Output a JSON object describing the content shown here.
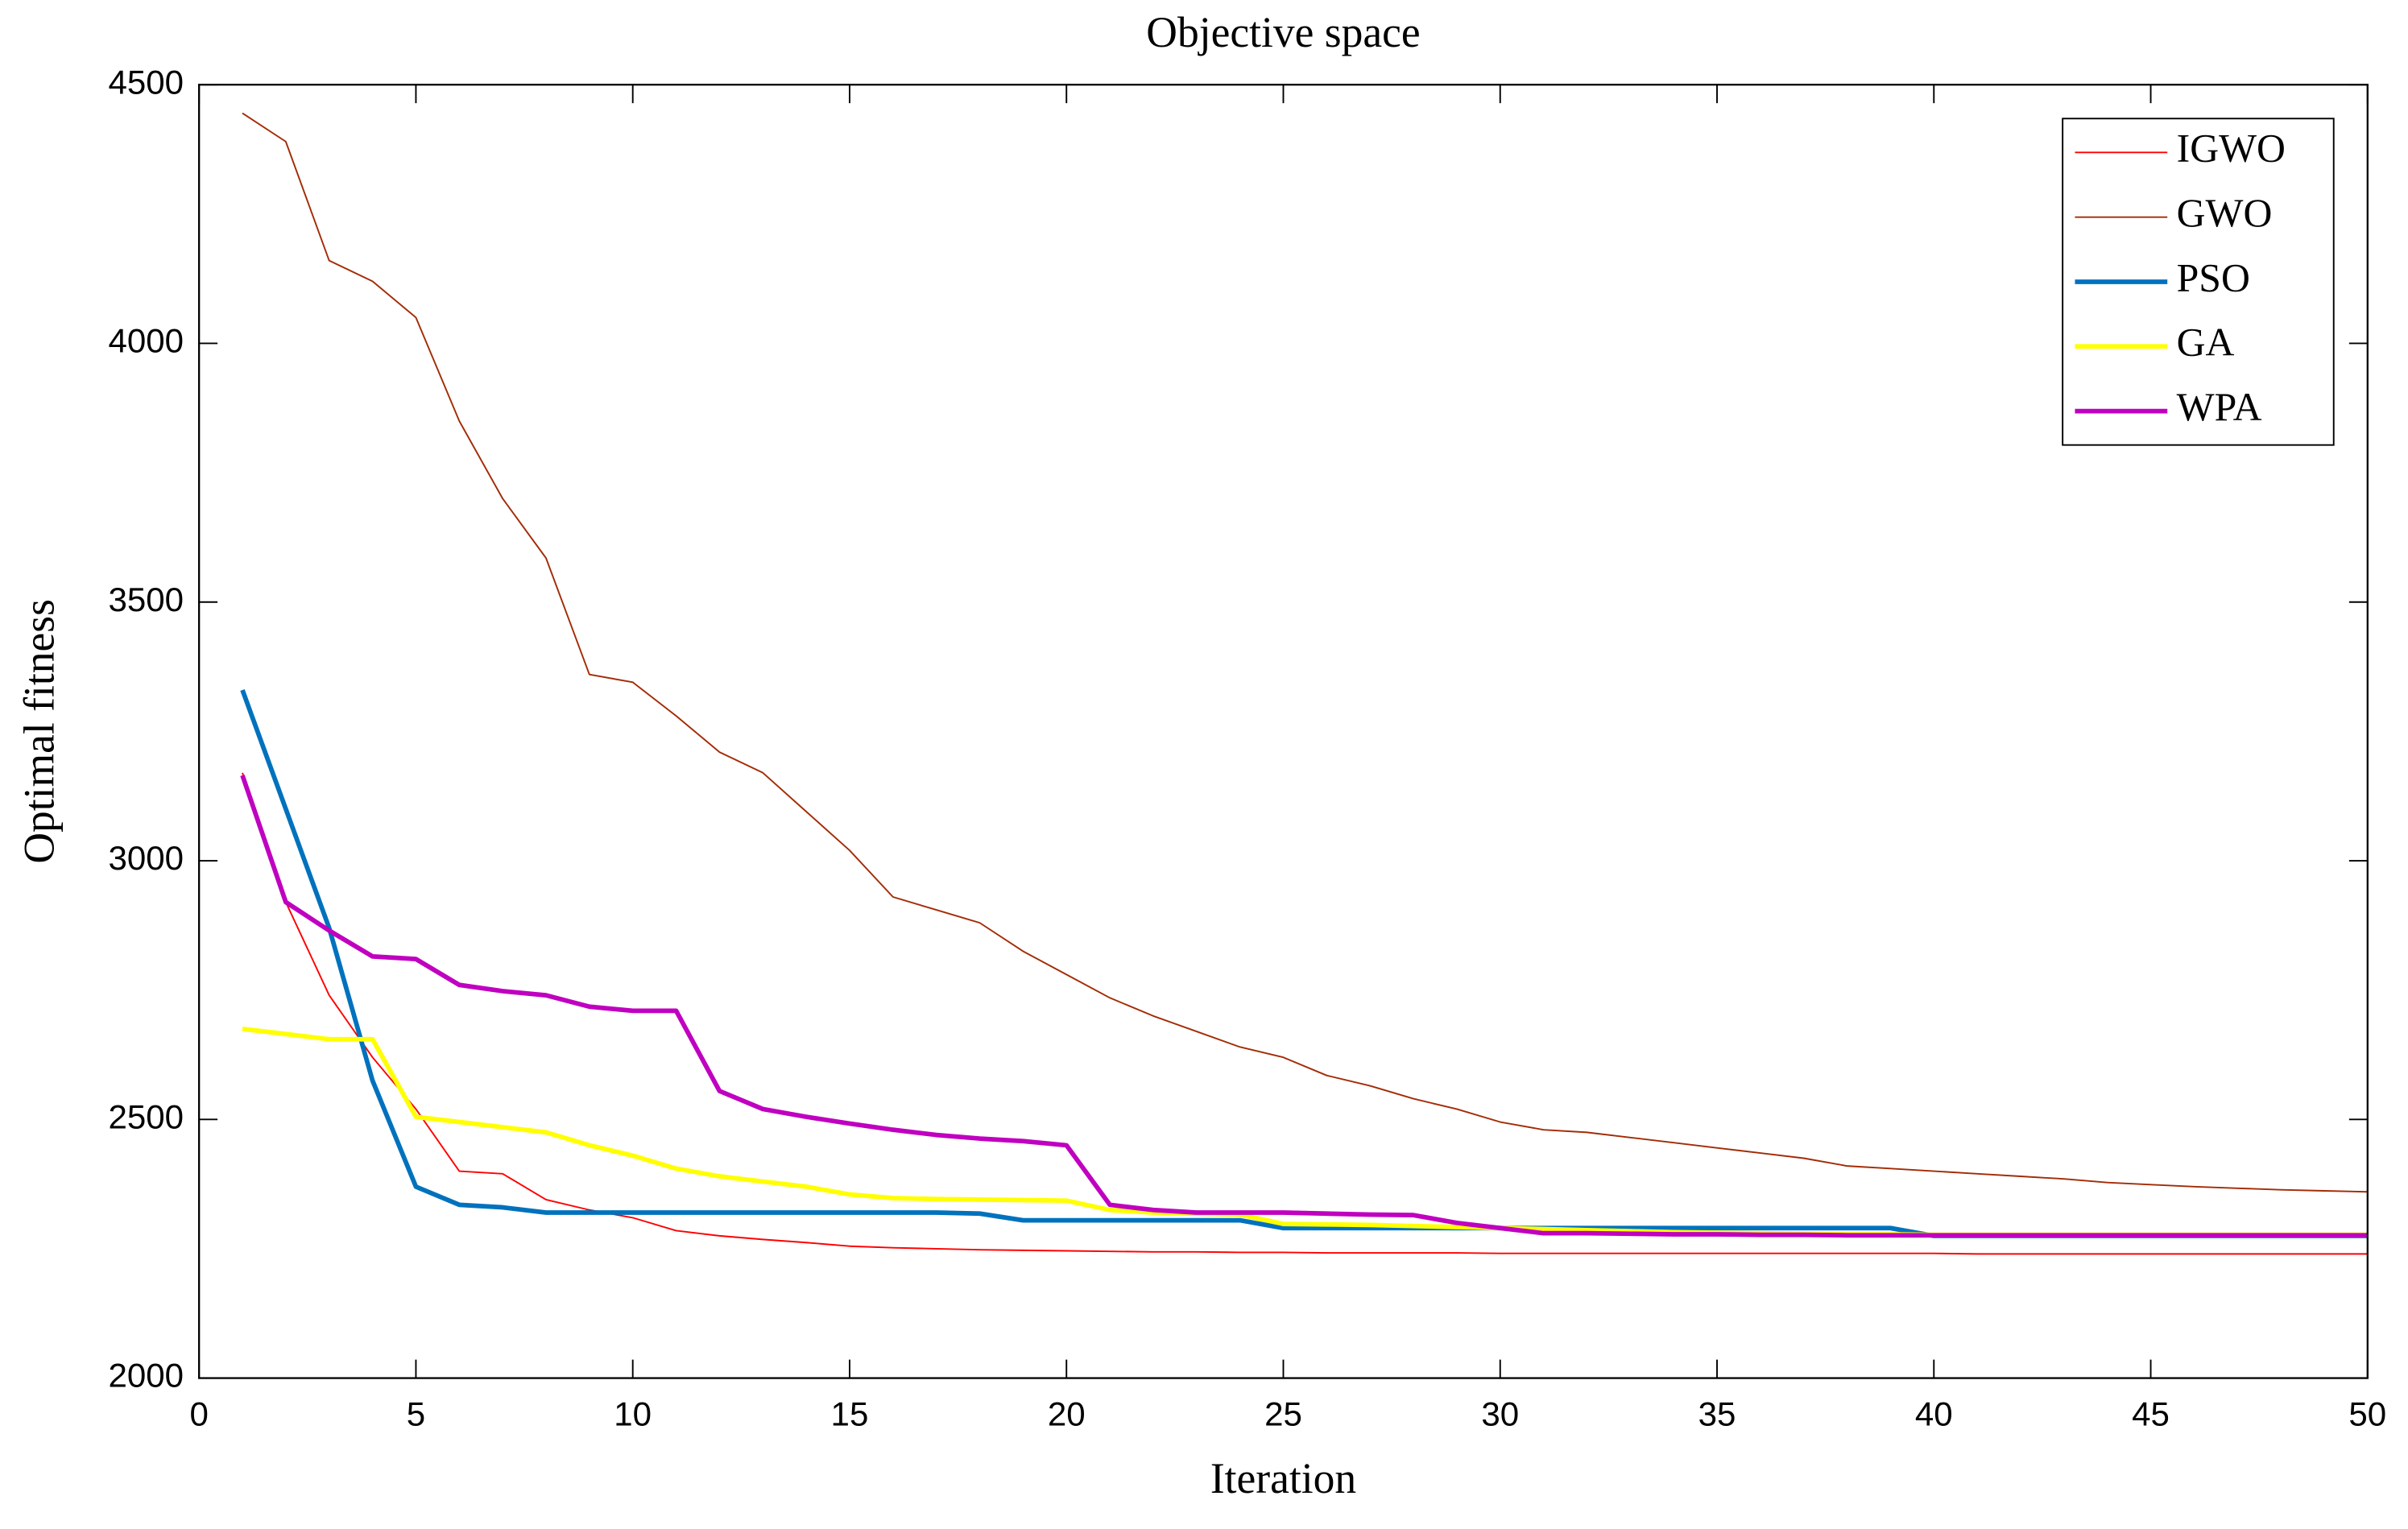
{
  "chart_data": {
    "type": "line",
    "title": "Objective space",
    "xlabel": "Iteration",
    "ylabel": "Optimal fitness",
    "x": [
      1,
      2,
      3,
      4,
      5,
      6,
      7,
      8,
      9,
      10,
      11,
      12,
      13,
      14,
      15,
      16,
      17,
      18,
      19,
      20,
      21,
      22,
      23,
      24,
      25,
      26,
      27,
      28,
      29,
      30,
      31,
      32,
      33,
      34,
      35,
      36,
      37,
      38,
      39,
      40,
      41,
      42,
      43,
      44,
      45,
      46,
      47,
      48,
      49,
      50
    ],
    "xlim": [
      0,
      50
    ],
    "xticks": [
      0,
      5,
      10,
      15,
      20,
      25,
      30,
      35,
      40,
      45,
      50
    ],
    "ylim": [
      2000,
      4500
    ],
    "yticks": [
      2000,
      2500,
      3000,
      3500,
      4000,
      4500
    ],
    "legend": "northeast",
    "series": [
      {
        "name": "IGWO",
        "color": "#ff0000",
        "line_width": 1,
        "values": [
          3170,
          2920,
          2740,
          2620,
          2520,
          2400,
          2395,
          2345,
          2325,
          2310,
          2285,
          2275,
          2268,
          2262,
          2255,
          2252,
          2250,
          2248,
          2247,
          2246,
          2245,
          2244,
          2244,
          2243,
          2243,
          2242,
          2242,
          2242,
          2242,
          2241,
          2241,
          2241,
          2241,
          2241,
          2241,
          2241,
          2241,
          2241,
          2241,
          2241,
          2240,
          2240,
          2240,
          2240,
          2240,
          2240,
          2240,
          2240,
          2240,
          2240
        ]
      },
      {
        "name": "GWO",
        "color": "#a32b05",
        "line_width": 1,
        "values": [
          4445,
          4390,
          4160,
          4120,
          4050,
          3850,
          3700,
          3585,
          3360,
          3345,
          3280,
          3210,
          3170,
          3095,
          3020,
          2930,
          2905,
          2880,
          2825,
          2780,
          2735,
          2700,
          2670,
          2640,
          2620,
          2585,
          2565,
          2540,
          2520,
          2495,
          2480,
          2475,
          2465,
          2455,
          2445,
          2435,
          2425,
          2410,
          2405,
          2400,
          2395,
          2390,
          2385,
          2378,
          2374,
          2370,
          2367,
          2364,
          2362,
          2360
        ]
      },
      {
        "name": "PSO",
        "color": "#0072bd",
        "line_width": 3,
        "values": [
          3330,
          3100,
          2870,
          2575,
          2370,
          2335,
          2330,
          2320,
          2320,
          2320,
          2320,
          2320,
          2320,
          2320,
          2320,
          2320,
          2320,
          2318,
          2305,
          2305,
          2305,
          2305,
          2305,
          2305,
          2290,
          2290,
          2290,
          2290,
          2290,
          2290,
          2290,
          2290,
          2290,
          2290,
          2290,
          2290,
          2290,
          2290,
          2290,
          2275,
          2275,
          2275,
          2275,
          2275,
          2275,
          2275,
          2275,
          2275,
          2275,
          2275
        ]
      },
      {
        "name": "GA",
        "color": "#ffff00",
        "line_width": 3,
        "values": [
          2675,
          2665,
          2655,
          2655,
          2505,
          2495,
          2485,
          2475,
          2450,
          2430,
          2405,
          2390,
          2380,
          2370,
          2355,
          2348,
          2346,
          2345,
          2344,
          2343,
          2325,
          2320,
          2318,
          2316,
          2298,
          2297,
          2296,
          2294,
          2292,
          2290,
          2288,
          2286,
          2284,
          2282,
          2281,
          2280,
          2279,
          2278,
          2278,
          2277,
          2277,
          2277,
          2277,
          2277,
          2277,
          2277,
          2277,
          2277,
          2277,
          2277
        ]
      },
      {
        "name": "WPA",
        "color": "#c000c0",
        "line_width": 3,
        "values": [
          3165,
          2920,
          2865,
          2815,
          2810,
          2760,
          2748,
          2740,
          2718,
          2710,
          2710,
          2555,
          2520,
          2505,
          2492,
          2480,
          2470,
          2463,
          2458,
          2450,
          2335,
          2325,
          2320,
          2320,
          2320,
          2318,
          2316,
          2315,
          2300,
          2290,
          2280,
          2280,
          2279,
          2278,
          2278,
          2277,
          2277,
          2276,
          2276,
          2276,
          2276,
          2276,
          2276,
          2276,
          2276,
          2276,
          2276,
          2276,
          2276,
          2276
        ]
      }
    ]
  }
}
